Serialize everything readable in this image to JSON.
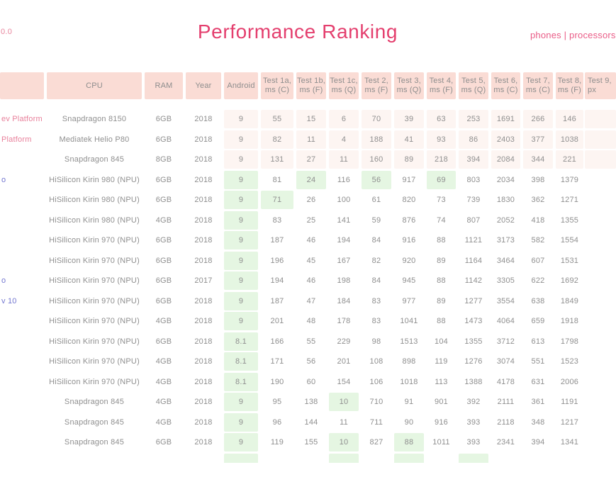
{
  "header": {
    "version_fragment": "0.0",
    "title": "Performance Ranking",
    "nav_label": "phones | processors"
  },
  "colors": {
    "accent_pink": "#e43f6e",
    "nav_pink": "#ea5c87",
    "header_cell_bg": "#fadcd5",
    "row_tint_pink": "#fdf5f2",
    "highlight_green": "#e5f6e2",
    "device_link_pink": "#e8809b",
    "device_link_blue": "#7377d0",
    "text_gray": "#8f8f8f"
  },
  "table": {
    "columns": [
      {
        "id": "device",
        "line1": "",
        "line2": ""
      },
      {
        "id": "cpu",
        "line1": "CPU",
        "line2": ""
      },
      {
        "id": "ram",
        "line1": "RAM",
        "line2": ""
      },
      {
        "id": "year",
        "line1": "Year",
        "line2": ""
      },
      {
        "id": "android",
        "line1": "Android",
        "line2": ""
      },
      {
        "id": "t1a",
        "line1": "Test 1a,",
        "line2": "ms (C)"
      },
      {
        "id": "t1b",
        "line1": "Test 1b,",
        "line2": "ms (F)"
      },
      {
        "id": "t1c",
        "line1": "Test 1c,",
        "line2": "ms (Q)"
      },
      {
        "id": "t2",
        "line1": "Test 2,",
        "line2": "ms (F)"
      },
      {
        "id": "t3",
        "line1": "Test 3,",
        "line2": "ms (Q)"
      },
      {
        "id": "t4",
        "line1": "Test 4,",
        "line2": "ms (F)"
      },
      {
        "id": "t5",
        "line1": "Test 5,",
        "line2": "ms (Q)"
      },
      {
        "id": "t6",
        "line1": "Test 6,",
        "line2": "ms (C)"
      },
      {
        "id": "t7",
        "line1": "Test 7,",
        "line2": "ms (C)"
      },
      {
        "id": "t8",
        "line1": "Test 8,",
        "line2": "ms (F)"
      },
      {
        "id": "t9",
        "line1": "Test 9,",
        "line2": "px"
      }
    ],
    "rows": [
      {
        "device": "ev Platform",
        "device_style": "pink",
        "cpu": "Snapdragon 8150",
        "ram": "6GB",
        "year": "2018",
        "android": "9",
        "tests": [
          "55",
          "15",
          "6",
          "70",
          "39",
          "63",
          "253",
          "1691",
          "266",
          "146"
        ],
        "green": []
      },
      {
        "device": "Platform",
        "device_style": "pink",
        "cpu": "Mediatek Helio P80",
        "ram": "6GB",
        "year": "2018",
        "android": "9",
        "tests": [
          "82",
          "11",
          "4",
          "188",
          "41",
          "93",
          "86",
          "2403",
          "377",
          "1038"
        ],
        "green": []
      },
      {
        "device": "",
        "device_style": "none",
        "cpu": "Snapdragon 845",
        "ram": "8GB",
        "year": "2018",
        "android": "9",
        "tests": [
          "131",
          "27",
          "11",
          "160",
          "89",
          "218",
          "394",
          "2084",
          "344",
          "221"
        ],
        "green": []
      },
      {
        "device": "o",
        "device_style": "blue",
        "cpu": "HiSilicon Kirin 980 (NPU)",
        "ram": "6GB",
        "year": "2018",
        "android": "9",
        "tests": [
          "81",
          "24",
          "116",
          "56",
          "917",
          "69",
          "803",
          "2034",
          "398",
          "1379"
        ],
        "green": [
          "android",
          "t1b",
          "t2",
          "t4"
        ]
      },
      {
        "device": "",
        "device_style": "none",
        "cpu": "HiSilicon Kirin 980 (NPU)",
        "ram": "6GB",
        "year": "2018",
        "android": "9",
        "tests": [
          "71",
          "26",
          "100",
          "61",
          "820",
          "73",
          "739",
          "1830",
          "362",
          "1271"
        ],
        "green": [
          "android",
          "t1a"
        ]
      },
      {
        "device": "",
        "device_style": "none",
        "cpu": "HiSilicon Kirin 980 (NPU)",
        "ram": "4GB",
        "year": "2018",
        "android": "9",
        "tests": [
          "83",
          "25",
          "141",
          "59",
          "876",
          "74",
          "807",
          "2052",
          "418",
          "1355"
        ],
        "green": [
          "android"
        ]
      },
      {
        "device": "",
        "device_style": "none",
        "cpu": "HiSilicon Kirin 970 (NPU)",
        "ram": "6GB",
        "year": "2018",
        "android": "9",
        "tests": [
          "187",
          "46",
          "194",
          "84",
          "916",
          "88",
          "1121",
          "3173",
          "582",
          "1554"
        ],
        "green": [
          "android"
        ]
      },
      {
        "device": "",
        "device_style": "none",
        "cpu": "HiSilicon Kirin 970 (NPU)",
        "ram": "6GB",
        "year": "2018",
        "android": "9",
        "tests": [
          "196",
          "45",
          "167",
          "82",
          "920",
          "89",
          "1164",
          "3464",
          "607",
          "1531"
        ],
        "green": [
          "android"
        ]
      },
      {
        "device": "o",
        "device_style": "blue",
        "cpu": "HiSilicon Kirin 970 (NPU)",
        "ram": "6GB",
        "year": "2017",
        "android": "9",
        "tests": [
          "194",
          "46",
          "198",
          "84",
          "945",
          "88",
          "1142",
          "3305",
          "622",
          "1692"
        ],
        "green": [
          "android"
        ]
      },
      {
        "device": "v 10",
        "device_style": "blue",
        "cpu": "HiSilicon Kirin 970 (NPU)",
        "ram": "6GB",
        "year": "2018",
        "android": "9",
        "tests": [
          "187",
          "47",
          "184",
          "83",
          "977",
          "89",
          "1277",
          "3554",
          "638",
          "1849"
        ],
        "green": [
          "android"
        ]
      },
      {
        "device": "",
        "device_style": "none",
        "cpu": "HiSilicon Kirin 970 (NPU)",
        "ram": "4GB",
        "year": "2018",
        "android": "9",
        "tests": [
          "201",
          "48",
          "178",
          "83",
          "1041",
          "88",
          "1473",
          "4064",
          "659",
          "1918"
        ],
        "green": [
          "android"
        ]
      },
      {
        "device": "",
        "device_style": "none",
        "cpu": "HiSilicon Kirin 970 (NPU)",
        "ram": "6GB",
        "year": "2018",
        "android": "8.1",
        "tests": [
          "166",
          "55",
          "229",
          "98",
          "1513",
          "104",
          "1355",
          "3712",
          "613",
          "1798"
        ],
        "green": [
          "android"
        ]
      },
      {
        "device": "",
        "device_style": "none",
        "cpu": "HiSilicon Kirin 970 (NPU)",
        "ram": "4GB",
        "year": "2018",
        "android": "8.1",
        "tests": [
          "171",
          "56",
          "201",
          "108",
          "898",
          "119",
          "1276",
          "3074",
          "551",
          "1523"
        ],
        "green": [
          "android"
        ]
      },
      {
        "device": "",
        "device_style": "none",
        "cpu": "HiSilicon Kirin 970 (NPU)",
        "ram": "4GB",
        "year": "2018",
        "android": "8.1",
        "tests": [
          "190",
          "60",
          "154",
          "106",
          "1018",
          "113",
          "1388",
          "4178",
          "631",
          "2006"
        ],
        "green": [
          "android"
        ]
      },
      {
        "device": "",
        "device_style": "none",
        "cpu": "Snapdragon 845",
        "ram": "4GB",
        "year": "2018",
        "android": "9",
        "tests": [
          "95",
          "138",
          "10",
          "710",
          "91",
          "901",
          "392",
          "2111",
          "361",
          "1191"
        ],
        "green": [
          "android",
          "t1c"
        ]
      },
      {
        "device": "",
        "device_style": "none",
        "cpu": "Snapdragon 845",
        "ram": "4GB",
        "year": "2018",
        "android": "9",
        "tests": [
          "96",
          "144",
          "11",
          "711",
          "90",
          "916",
          "393",
          "2118",
          "348",
          "1217"
        ],
        "green": [
          "android"
        ]
      },
      {
        "device": "",
        "device_style": "none",
        "cpu": "Snapdragon 845",
        "ram": "6GB",
        "year": "2018",
        "android": "9",
        "tests": [
          "119",
          "155",
          "10",
          "827",
          "88",
          "1011",
          "393",
          "2341",
          "394",
          "1341"
        ],
        "green": [
          "android",
          "t1c",
          "t3"
        ]
      }
    ],
    "partial_row_green_cols": [
      "android",
      "t1c",
      "t3",
      "t5"
    ]
  }
}
